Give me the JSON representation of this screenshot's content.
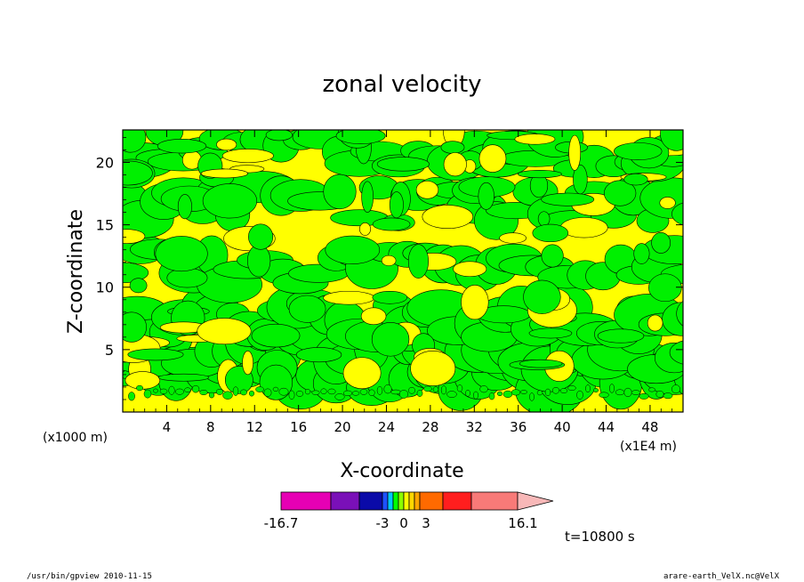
{
  "chart_data": {
    "type": "heatmap",
    "title": "zonal velocity",
    "xlabel": "X-coordinate",
    "ylabel": "Z-coordinate",
    "x_unit_left": "(x1000 m)",
    "x_unit_right": "(x1E4 m)",
    "x_ticks": [
      "4",
      "8",
      "12",
      "16",
      "20",
      "24",
      "28",
      "32",
      "36",
      "40",
      "44",
      "48"
    ],
    "x_tick_values": [
      4,
      8,
      12,
      16,
      20,
      24,
      28,
      32,
      36,
      40,
      44,
      48
    ],
    "xlim": [
      0,
      51
    ],
    "y_ticks": [
      "5",
      "10",
      "15",
      "20"
    ],
    "y_tick_values": [
      5,
      10,
      15,
      20
    ],
    "ylim": [
      0,
      22.6
    ],
    "colorbar": {
      "colors": [
        "#e600b4",
        "#7a10b8",
        "#0a0aa8",
        "#1e52ff",
        "#00c8ff",
        "#00ff00",
        "#8cff00",
        "#ffff00",
        "#ffd700",
        "#ffa500",
        "#ff6a00",
        "#ff1e1e",
        "#f87a78",
        "#f8b8b8"
      ],
      "labels": [
        {
          "text": "-16.7",
          "value": -16.7
        },
        {
          "text": "-3",
          "value": -3
        },
        {
          "text": "0",
          "value": 0
        },
        {
          "text": "3",
          "value": 3
        },
        {
          "text": "16.1",
          "value": 16.1
        }
      ]
    },
    "field_colors": {
      "positive": "#ffff00",
      "negative": "#00f000"
    },
    "time_label": "t=10800 s"
  },
  "footer": {
    "left": "/usr/bin/gpview   2010-11-15",
    "right": "arare-earth_VelX.nc@VelX"
  }
}
